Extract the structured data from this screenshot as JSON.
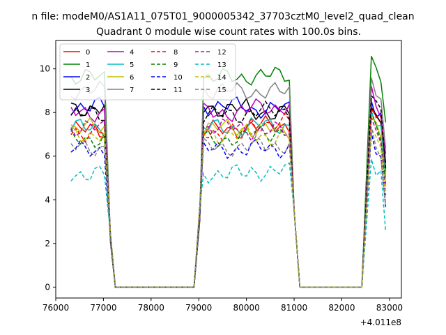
{
  "chart_data": {
    "type": "line",
    "suptitle": "n file: modeM0/AS1A11_075T01_9000005342_37703cztM0_level2_quad_clean",
    "title": "Quadrant 0 module wise count rates with 100.0s bins.",
    "xlabel": "",
    "ylabel": "",
    "x_offset_label": "+4.011e8",
    "xlim": [
      76000,
      83250
    ],
    "ylim": [
      -0.5,
      11.3
    ],
    "x_ticks": [
      76000,
      77000,
      78000,
      79000,
      80000,
      81000,
      82000,
      83000
    ],
    "x_tick_labels": [
      "76000",
      "77000",
      "78000",
      "79000",
      "80000",
      "81000",
      "82000",
      "83000"
    ],
    "y_ticks": [
      0,
      2,
      4,
      6,
      8,
      10
    ],
    "y_tick_labels": [
      "0",
      "2",
      "4",
      "6",
      "8",
      "10"
    ],
    "grid": false,
    "legend_position": "top-left",
    "segments": [
      [
        76320,
        77050
      ],
      [
        79020,
        80900
      ],
      [
        82620,
        82920
      ]
    ],
    "drop_ends": [
      [
        77050,
        77250
      ],
      [
        78900,
        79020
      ],
      [
        80900,
        81120
      ],
      [
        82420,
        82620
      ],
      [
        82920,
        82920
      ]
    ],
    "zero_segments": [
      [
        77250,
        78900
      ],
      [
        81120,
        82420
      ]
    ],
    "series": [
      {
        "name": "0",
        "color": "#ff0000",
        "dash": "solid",
        "level": 7.2,
        "end_level": 7.6
      },
      {
        "name": "1",
        "color": "#008000",
        "dash": "solid",
        "level": 9.6,
        "end_level": 9.8
      },
      {
        "name": "2",
        "color": "#0000ff",
        "dash": "solid",
        "level": 8.3,
        "end_level": 8.0
      },
      {
        "name": "3",
        "color": "#000000",
        "dash": "solid",
        "level": 8.2,
        "end_level": 7.8
      },
      {
        "name": "4",
        "color": "#bf00bf",
        "dash": "solid",
        "level": 8.0,
        "end_level": 8.5
      },
      {
        "name": "5",
        "color": "#00bfbf",
        "dash": "solid",
        "level": 7.3,
        "end_level": 7.5
      },
      {
        "name": "6",
        "color": "#bfbf00",
        "dash": "solid",
        "level": 7.3,
        "end_level": 7.1
      },
      {
        "name": "7",
        "color": "#808080",
        "dash": "solid",
        "level": 9.0,
        "end_level": 8.9
      },
      {
        "name": "8",
        "color": "#ff0000",
        "dash": "dashed",
        "level": 7.1,
        "end_level": 7.9
      },
      {
        "name": "9",
        "color": "#008000",
        "dash": "dashed",
        "level": 6.8,
        "end_level": 7.4
      },
      {
        "name": "10",
        "color": "#0000ff",
        "dash": "dashed",
        "level": 6.3,
        "end_level": 6.4
      },
      {
        "name": "11",
        "color": "#000000",
        "dash": "dashed",
        "level": 7.9,
        "end_level": 8.2
      },
      {
        "name": "12",
        "color": "#bf00bf",
        "dash": "dashed",
        "level": 7.3,
        "end_level": 7.0
      },
      {
        "name": "13",
        "color": "#00bfbf",
        "dash": "dashed",
        "level": 5.2,
        "end_level": 5.4
      },
      {
        "name": "14",
        "color": "#bfbf00",
        "dash": "dashed",
        "level": 7.0,
        "end_level": 6.8
      },
      {
        "name": "15",
        "color": "#808080",
        "dash": "dashed",
        "level": 6.4,
        "end_level": 6.6
      }
    ]
  }
}
